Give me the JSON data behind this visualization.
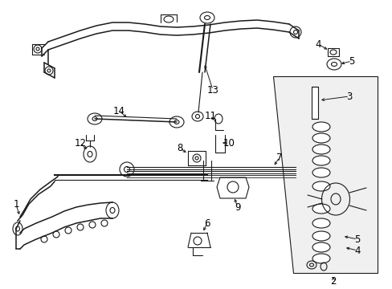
{
  "background_color": "#ffffff",
  "line_color": "#1a1a1a",
  "label_color": "#000000",
  "fig_width": 4.89,
  "fig_height": 3.6,
  "dpi": 100
}
